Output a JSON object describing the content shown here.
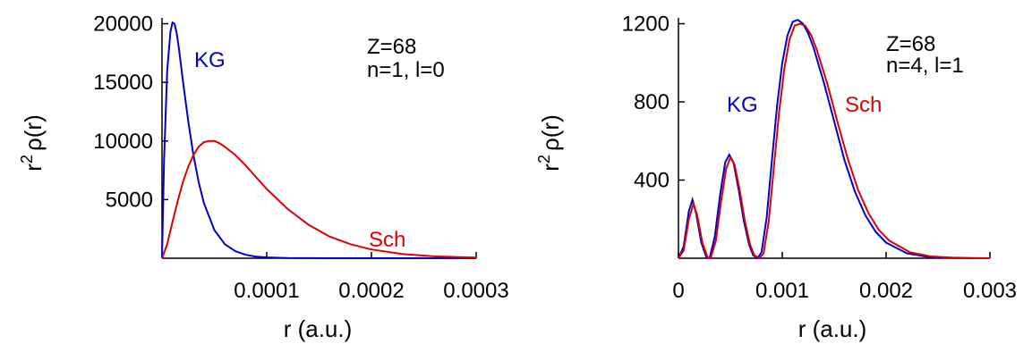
{
  "chart_data": [
    {
      "type": "line",
      "xlabel": "r (a.u.)",
      "ylabel": "r^2 ρ(r)",
      "ylabel_base": "r",
      "ylabel_sup": "2",
      "ylabel_rest": "ρ(r)",
      "xlim": [
        0,
        0.0003
      ],
      "ylim": [
        0,
        20500
      ],
      "xticks": [
        0.0001,
        0.0002,
        0.0003
      ],
      "xtick_labels": [
        "0.0001",
        "0.0002",
        "0.0003"
      ],
      "yticks": [
        5000,
        10000,
        15000,
        20000
      ],
      "ytick_labels": [
        "5000",
        "10000",
        "15000",
        "20000"
      ],
      "grid": false,
      "annotations": [
        "Z=68",
        "n=1, l=0"
      ],
      "series": [
        {
          "name": "KG",
          "color": "#0000cc",
          "x": [
            0,
            2e-06,
            5e-06,
            8e-06,
            1e-05,
            1.2e-05,
            1.4e-05,
            1.6e-05,
            2e-05,
            2.5e-05,
            3e-05,
            3.5e-05,
            4e-05,
            5e-05,
            6e-05,
            7e-05,
            8e-05,
            9e-05,
            0.0001,
            0.00012,
            0.00014,
            0.00016,
            0.00018,
            0.0002,
            0.00025,
            0.0003
          ],
          "y": [
            0,
            8400,
            16000,
            19300,
            20100,
            20000,
            19200,
            18000,
            15100,
            11700,
            8800,
            6500,
            4700,
            2400,
            1200,
            600,
            290,
            140,
            70,
            15,
            4,
            1,
            0,
            0,
            0,
            0
          ]
        },
        {
          "name": "Sch",
          "color": "#dd0000",
          "x": [
            0,
            5e-06,
            1e-05,
            1.5e-05,
            2e-05,
            2.5e-05,
            3e-05,
            3.5e-05,
            4e-05,
            4.5e-05,
            5e-05,
            5.5e-05,
            6e-05,
            7e-05,
            8e-05,
            9e-05,
            0.0001,
            0.00012,
            0.00014,
            0.00016,
            0.00018,
            0.0002,
            0.00023,
            0.00026,
            0.0003
          ],
          "y": [
            0,
            1200,
            3100,
            4900,
            6500,
            7800,
            8800,
            9500,
            9900,
            10000,
            10000,
            9800,
            9500,
            8800,
            7900,
            6900,
            5900,
            4200,
            2850,
            1850,
            1200,
            750,
            350,
            160,
            50
          ]
        }
      ]
    },
    {
      "type": "line",
      "xlabel": "r (a.u.)",
      "ylabel": "r^2 ρ(r)",
      "ylabel_base": "r",
      "ylabel_sup": "2",
      "ylabel_rest": "ρ(r)",
      "xlim": [
        0,
        0.003
      ],
      "ylim": [
        0,
        1230
      ],
      "xticks": [
        0,
        0.001,
        0.002,
        0.003
      ],
      "xtick_labels": [
        "0",
        "0.001",
        "0.002",
        "0.003"
      ],
      "yticks": [
        400,
        800,
        1200
      ],
      "ytick_labels": [
        "400",
        "800",
        "1200"
      ],
      "grid": false,
      "annotations": [
        "Z=68",
        "n=4, l=1"
      ],
      "series": [
        {
          "name": "KG",
          "color": "#0000cc",
          "x": [
            0,
            5e-05,
            0.0001,
            0.000135,
            0.00017,
            0.00022,
            0.00027,
            0.0003,
            0.00035,
            0.0004,
            0.00045,
            0.00049,
            0.00053,
            0.00058,
            0.00063,
            0.00068,
            0.00072,
            0.00076,
            0.0008,
            0.00085,
            0.0009,
            0.00095,
            0.001,
            0.00105,
            0.0011,
            0.00115,
            0.0012,
            0.00125,
            0.0013,
            0.0014,
            0.0015,
            0.0016,
            0.0017,
            0.0018,
            0.0019,
            0.002,
            0.0022,
            0.0024,
            0.0026,
            0.0028,
            0.003
          ],
          "y": [
            0,
            60,
            240,
            300,
            230,
            80,
            5,
            0,
            110,
            320,
            490,
            530,
            490,
            350,
            190,
            70,
            15,
            0,
            30,
            210,
            500,
            780,
            1000,
            1140,
            1210,
            1220,
            1200,
            1150,
            1080,
            900,
            700,
            500,
            340,
            220,
            135,
            80,
            25,
            7,
            2,
            0,
            0
          ]
        },
        {
          "name": "Sch",
          "color": "#dd0000",
          "x": [
            0,
            5e-05,
            0.0001,
            0.000145,
            0.00018,
            0.00023,
            0.00028,
            0.00031,
            0.00036,
            0.00041,
            0.00046,
            0.0005,
            0.00054,
            0.00059,
            0.00064,
            0.00069,
            0.00073,
            0.00078,
            0.00082,
            0.00087,
            0.00092,
            0.00097,
            0.00102,
            0.00107,
            0.00112,
            0.00117,
            0.00122,
            0.00128,
            0.00133,
            0.00143,
            0.00153,
            0.00163,
            0.00173,
            0.00183,
            0.00193,
            0.00203,
            0.00223,
            0.00243,
            0.00263,
            0.00283,
            0.003
          ],
          "y": [
            0,
            40,
            200,
            280,
            220,
            80,
            5,
            0,
            90,
            290,
            460,
            515,
            480,
            350,
            190,
            70,
            15,
            0,
            25,
            190,
            470,
            750,
            970,
            1120,
            1190,
            1200,
            1190,
            1140,
            1070,
            900,
            700,
            510,
            350,
            230,
            145,
            90,
            30,
            9,
            3,
            1,
            0
          ]
        }
      ]
    }
  ]
}
